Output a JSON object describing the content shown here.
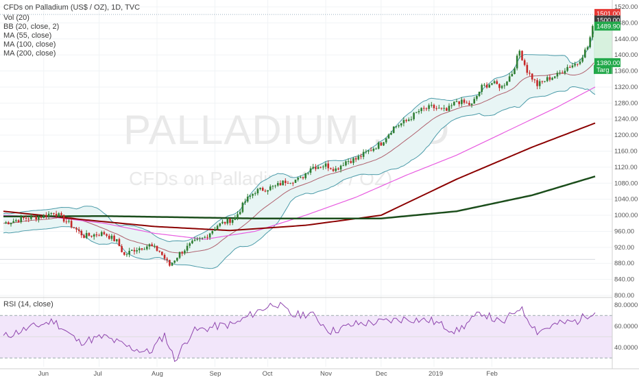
{
  "legend": {
    "title": "CFDs on Palladium (US$ / OZ), 1D, TVC",
    "studies": [
      "Vol (20)",
      "BB (20, close, 2)",
      "MA (55, close)",
      "MA (100, close)",
      "MA (200, close)"
    ],
    "rsi": "RSI (14, close)"
  },
  "watermark": {
    "symbol": "PALLADIUM , 1D",
    "description": "CFDs on Palladium (US$ / OZ)"
  },
  "colors": {
    "up": "#2e7d32",
    "down": "#c62828",
    "bb": "#4a9aa8",
    "bb_fill": "#e8f5f5",
    "ma55": "#a0394a",
    "ma100": "#e85ae0",
    "ma200": "#8b0000",
    "ma_long": "#1b4d1b",
    "rsi": "#8e44ad",
    "rsi_fill": "#f2e6fa",
    "target": "#22a84a",
    "last": "#e53935"
  },
  "price_badges": [
    {
      "text": "1501.00",
      "value": 1501,
      "color": "#e53935"
    },
    {
      "text": "1500.00",
      "value": 1500,
      "color": "#3c3c3c"
    },
    {
      "text": "1489.90",
      "value": 1489.9,
      "color": "#22a84a"
    },
    {
      "text": "1380.00",
      "value": 1380,
      "color": "#22a84a"
    }
  ],
  "target_label": "Targ",
  "chart_data": [
    {
      "type": "candlestick",
      "title": "CFDs on Palladium (US$ / OZ), 1D, TVC",
      "x_tick_labels": [
        "Jun",
        "Jul",
        "Aug",
        "Sep",
        "Oct",
        "Nov",
        "Dec",
        "2019",
        "Feb"
      ],
      "y_tick_labels": [
        "1520.00",
        "1480.00",
        "1440.00",
        "1400.00",
        "1360.00",
        "1320.00",
        "1280.00",
        "1240.00",
        "1200.00",
        "1160.00",
        "1120.00",
        "1080.00",
        "1040.00",
        "1000.00",
        "960.00",
        "920.00",
        "880.00",
        "840.00",
        "800.00"
      ],
      "ylim": [
        800,
        1520
      ],
      "grid": true,
      "reference_line": 890,
      "close_anchors": [
        {
          "day": 0,
          "close": 980
        },
        {
          "day": 8,
          "close": 992
        },
        {
          "day": 16,
          "close": 998
        },
        {
          "day": 20,
          "close": 1008
        },
        {
          "day": 25,
          "close": 985
        },
        {
          "day": 32,
          "close": 948
        },
        {
          "day": 40,
          "close": 955
        },
        {
          "day": 45,
          "close": 935
        },
        {
          "day": 48,
          "close": 900
        },
        {
          "day": 52,
          "close": 915
        },
        {
          "day": 58,
          "close": 925
        },
        {
          "day": 62,
          "close": 910
        },
        {
          "day": 66,
          "close": 875
        },
        {
          "day": 70,
          "close": 905
        },
        {
          "day": 75,
          "close": 930
        },
        {
          "day": 80,
          "close": 945
        },
        {
          "day": 85,
          "close": 975
        },
        {
          "day": 90,
          "close": 988
        },
        {
          "day": 92,
          "close": 993
        },
        {
          "day": 96,
          "close": 1035
        },
        {
          "day": 100,
          "close": 1060
        },
        {
          "day": 108,
          "close": 1072
        },
        {
          "day": 112,
          "close": 1085
        },
        {
          "day": 118,
          "close": 1090
        },
        {
          "day": 122,
          "close": 1120
        },
        {
          "day": 128,
          "close": 1125
        },
        {
          "day": 132,
          "close": 1115
        },
        {
          "day": 136,
          "close": 1135
        },
        {
          "day": 140,
          "close": 1140
        },
        {
          "day": 145,
          "close": 1160
        },
        {
          "day": 150,
          "close": 1180
        },
        {
          "day": 155,
          "close": 1220
        },
        {
          "day": 160,
          "close": 1235
        },
        {
          "day": 165,
          "close": 1260
        },
        {
          "day": 170,
          "close": 1270
        },
        {
          "day": 176,
          "close": 1260
        },
        {
          "day": 180,
          "close": 1285
        },
        {
          "day": 186,
          "close": 1275
        },
        {
          "day": 190,
          "close": 1320
        },
        {
          "day": 194,
          "close": 1330
        },
        {
          "day": 198,
          "close": 1320
        },
        {
          "day": 202,
          "close": 1355
        },
        {
          "day": 205,
          "close": 1410
        },
        {
          "day": 208,
          "close": 1360
        },
        {
          "day": 212,
          "close": 1325
        },
        {
          "day": 216,
          "close": 1340
        },
        {
          "day": 220,
          "close": 1350
        },
        {
          "day": 224,
          "close": 1370
        },
        {
          "day": 228,
          "close": 1380
        },
        {
          "day": 232,
          "close": 1420
        },
        {
          "day": 235,
          "close": 1490
        }
      ],
      "ma_200": [
        {
          "day": 0,
          "value": 997
        },
        {
          "day": 40,
          "value": 998
        },
        {
          "day": 100,
          "value": 992
        },
        {
          "day": 150,
          "value": 992
        },
        {
          "day": 180,
          "value": 1010
        },
        {
          "day": 210,
          "value": 1050
        },
        {
          "day": 235,
          "value": 1097
        }
      ],
      "ma_100": [
        {
          "day": 0,
          "value": 1010
        },
        {
          "day": 30,
          "value": 990
        },
        {
          "day": 60,
          "value": 972
        },
        {
          "day": 90,
          "value": 962
        },
        {
          "day": 120,
          "value": 975
        },
        {
          "day": 150,
          "value": 1000
        },
        {
          "day": 180,
          "value": 1090
        },
        {
          "day": 210,
          "value": 1170
        },
        {
          "day": 235,
          "value": 1230
        }
      ],
      "ma_55": [
        {
          "day": 0,
          "value": 1000
        },
        {
          "day": 20,
          "value": 995
        },
        {
          "day": 40,
          "value": 980
        },
        {
          "day": 60,
          "value": 955
        },
        {
          "day": 80,
          "value": 940
        },
        {
          "day": 100,
          "value": 960
        },
        {
          "day": 120,
          "value": 1000
        },
        {
          "day": 140,
          "value": 1045
        },
        {
          "day": 160,
          "value": 1100
        },
        {
          "day": 180,
          "value": 1150
        },
        {
          "day": 200,
          "value": 1210
        },
        {
          "day": 220,
          "value": 1270
        },
        {
          "day": 235,
          "value": 1320
        }
      ]
    },
    {
      "type": "line",
      "title": "RSI (14, close)",
      "y_tick_labels": [
        "80.0000",
        "60.0000",
        "40.0000"
      ],
      "ylim": [
        25,
        85
      ],
      "bands": [
        30,
        70
      ],
      "values_anchor": [
        {
          "day": 0,
          "value": 50
        },
        {
          "day": 10,
          "value": 58
        },
        {
          "day": 20,
          "value": 65
        },
        {
          "day": 30,
          "value": 45
        },
        {
          "day": 40,
          "value": 50
        },
        {
          "day": 50,
          "value": 40
        },
        {
          "day": 58,
          "value": 35
        },
        {
          "day": 64,
          "value": 52
        },
        {
          "day": 68,
          "value": 28
        },
        {
          "day": 75,
          "value": 55
        },
        {
          "day": 85,
          "value": 60
        },
        {
          "day": 92,
          "value": 62
        },
        {
          "day": 100,
          "value": 73
        },
        {
          "day": 108,
          "value": 82
        },
        {
          "day": 115,
          "value": 70
        },
        {
          "day": 122,
          "value": 72
        },
        {
          "day": 130,
          "value": 55
        },
        {
          "day": 140,
          "value": 62
        },
        {
          "day": 150,
          "value": 64
        },
        {
          "day": 160,
          "value": 67
        },
        {
          "day": 170,
          "value": 65
        },
        {
          "day": 180,
          "value": 55
        },
        {
          "day": 190,
          "value": 73
        },
        {
          "day": 198,
          "value": 62
        },
        {
          "day": 205,
          "value": 78
        },
        {
          "day": 212,
          "value": 55
        },
        {
          "day": 220,
          "value": 62
        },
        {
          "day": 228,
          "value": 65
        },
        {
          "day": 235,
          "value": 75
        }
      ]
    }
  ]
}
